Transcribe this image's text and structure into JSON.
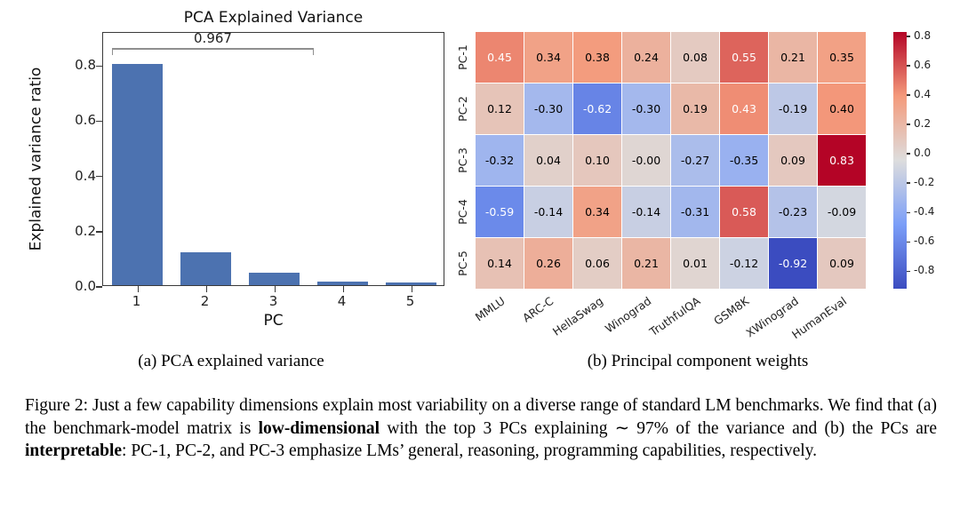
{
  "figure": {
    "subcaption_a": "(a) PCA explained variance",
    "subcaption_b": "(b) Principal component weights",
    "caption_segments": [
      {
        "text": "Figure 2: Just a few capability dimensions explain most variability on a diverse range of standard LM benchmarks. We find that (a) the benchmark-model matrix is ",
        "bold": false
      },
      {
        "text": "low-dimensional",
        "bold": true
      },
      {
        "text": " with the top 3 PCs explaining ∼ 97% of the variance and (b) the PCs are ",
        "bold": false
      },
      {
        "text": "interpretable",
        "bold": true
      },
      {
        "text": ": PC-1, PC-2, and PC-3 emphasize LMs’ general, reasoning, programming capabilities, respectively.",
        "bold": false
      }
    ]
  },
  "chart_data": [
    {
      "type": "bar",
      "title": "PCA Explained Variance",
      "xlabel": "PC",
      "ylabel": "Explained variance ratio",
      "categories": [
        "1",
        "2",
        "3",
        "4",
        "5"
      ],
      "values": [
        0.8,
        0.12,
        0.045,
        0.012,
        0.01
      ],
      "ylim": [
        0,
        0.92
      ],
      "yticks": [
        0.0,
        0.2,
        0.4,
        0.6,
        0.8
      ],
      "bar_color": "#4c72b0",
      "axis_color": "#3a3a3a",
      "bracket_color": "#8f8f8f",
      "grid": false,
      "legend": false,
      "annotation": {
        "label": "0.967",
        "span_from_bar": 0,
        "span_to_bar": 2,
        "y": 0.865
      }
    },
    {
      "type": "heatmap",
      "rows": [
        "PC-1",
        "PC-2",
        "PC-3",
        "PC-4",
        "PC-5"
      ],
      "columns": [
        "MMLU",
        "ARC-C",
        "HellaSwag",
        "Winograd",
        "TruthfulQA",
        "GSM8K",
        "XWinograd",
        "HumanEval"
      ],
      "values": [
        [
          "0.45",
          "0.34",
          "0.38",
          "0.24",
          "0.08",
          "0.55",
          "0.21",
          "0.35"
        ],
        [
          "0.12",
          "-0.30",
          "-0.62",
          "-0.30",
          "0.19",
          "0.43",
          "-0.19",
          "0.40"
        ],
        [
          "-0.32",
          "0.04",
          "0.10",
          "-0.00",
          "-0.27",
          "-0.35",
          "0.09",
          "0.83"
        ],
        [
          "-0.59",
          "-0.14",
          "0.34",
          "-0.14",
          "-0.31",
          "0.58",
          "-0.23",
          "-0.09"
        ],
        [
          "0.14",
          "0.26",
          "0.06",
          "0.21",
          "0.01",
          "-0.12",
          "-0.92",
          "0.09"
        ]
      ],
      "colormap": "coolwarm",
      "colormap_anchors": [
        "#3b4cc0",
        "#7b9ef8",
        "#dddddd",
        "#f49a7b",
        "#b40426"
      ],
      "vmin": -0.92,
      "vmax": 0.83,
      "colorbar_ticks": [
        0.8,
        0.6,
        0.4,
        0.2,
        0.0,
        -0.2,
        -0.4,
        -0.6,
        -0.8
      ],
      "legend_position": "right"
    }
  ]
}
